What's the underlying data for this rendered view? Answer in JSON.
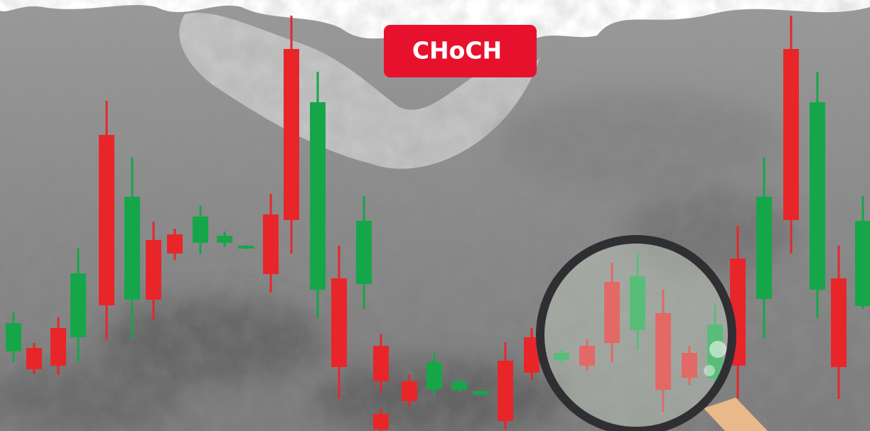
{
  "badge": {
    "label": "CHoCH"
  }
}
